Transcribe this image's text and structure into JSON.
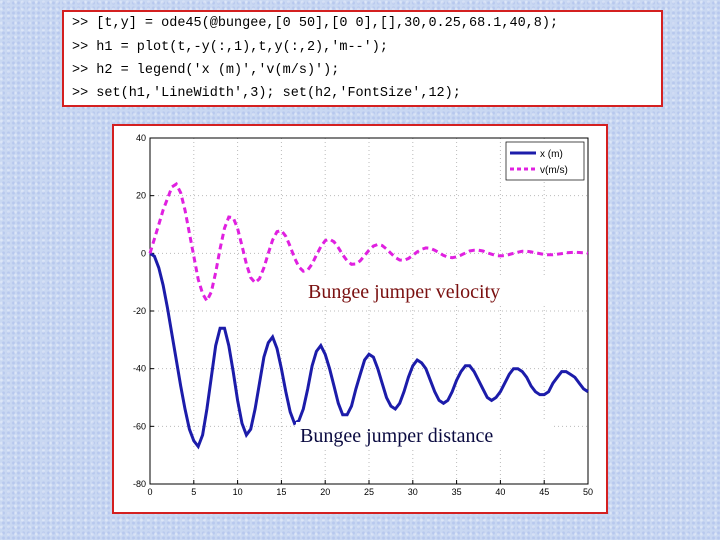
{
  "code": [
    ">> [t,y] = ode45(@bungee,[0 50],[0 0],[],30,0.25,68.1,40,8);",
    ">> h1 = plot(t,-y(:,1),t,y(:,2),'m--');",
    ">> h2 = legend('x (m)','v(m/s)');",
    ">> set(h1,'LineWidth',3); set(h2,'FontSize',12);"
  ],
  "chart_data": {
    "type": "line",
    "annotations": [
      "Bungee jumper velocity",
      "Bungee jumper distance"
    ],
    "x": [
      0,
      0.5,
      1,
      1.5,
      2,
      2.5,
      3,
      3.5,
      4,
      4.5,
      5,
      5.5,
      6,
      6.5,
      7,
      7.5,
      8,
      8.5,
      9,
      9.5,
      10,
      10.5,
      11,
      11.5,
      12,
      12.5,
      13,
      13.5,
      14,
      14.5,
      15,
      15.5,
      16,
      16.5,
      17,
      17.5,
      18,
      18.5,
      19,
      19.5,
      20,
      20.5,
      21,
      21.5,
      22,
      22.5,
      23,
      23.5,
      24,
      24.5,
      25,
      25.5,
      26,
      26.5,
      27,
      27.5,
      28,
      28.5,
      29,
      29.5,
      30,
      30.5,
      31,
      31.5,
      32,
      32.5,
      33,
      33.5,
      34,
      34.5,
      35,
      35.5,
      36,
      36.5,
      37,
      37.5,
      38,
      38.5,
      39,
      39.5,
      40,
      40.5,
      41,
      41.5,
      42,
      42.5,
      43,
      43.5,
      44,
      44.5,
      45,
      45.5,
      46,
      46.5,
      47,
      47.5,
      48,
      48.5,
      49,
      49.5,
      50
    ],
    "series": [
      {
        "name": "x (m)",
        "color": "#1c1caa",
        "dashed": false,
        "values": [
          0,
          -1,
          -5,
          -11,
          -19,
          -28,
          -37,
          -46,
          -54,
          -61,
          -65,
          -67,
          -63,
          -54,
          -43,
          -32,
          -26,
          -26,
          -32,
          -41,
          -51,
          -59,
          -63,
          -61,
          -54,
          -45,
          -36,
          -31,
          -29,
          -33,
          -40,
          -48,
          -55,
          -59,
          -58,
          -54,
          -47,
          -39,
          -34,
          -32,
          -35,
          -40,
          -46,
          -52,
          -56,
          -56,
          -53,
          -47,
          -42,
          -37,
          -35,
          -36,
          -40,
          -45,
          -50,
          -53,
          -54,
          -52,
          -48,
          -43,
          -39,
          -37,
          -38,
          -40,
          -44,
          -48,
          -51,
          -52,
          -51,
          -48,
          -44,
          -41,
          -39,
          -39,
          -41,
          -44,
          -47,
          -50,
          -51,
          -50,
          -48,
          -45,
          -42,
          -40,
          -40,
          -41,
          -43,
          -46,
          -48,
          -49,
          -49,
          -48,
          -45,
          -43,
          -41,
          -41,
          -42,
          -43,
          -45,
          -47,
          -48
        ]
      },
      {
        "name": "v(m/s)",
        "color": "#e020e0",
        "dashed": true,
        "values": [
          0,
          5,
          10,
          15,
          19,
          23,
          24,
          21,
          15,
          7,
          -1,
          -9,
          -14,
          -16.5,
          -13.4,
          -6.6,
          1.6,
          8.7,
          12.6,
          12.4,
          8.6,
          2.6,
          -3.7,
          -8.4,
          -10.2,
          -8.8,
          -5,
          0,
          4.6,
          7.5,
          7.9,
          5.9,
          2.4,
          -1.6,
          -4.7,
          -6.2,
          -5.8,
          -3.7,
          -0.6,
          2.3,
          4.4,
          4.9,
          4,
          2,
          -0.5,
          -2.6,
          -3.8,
          -3.7,
          -2.6,
          -0.8,
          1.1,
          2.5,
          3.1,
          2.7,
          1.5,
          0,
          -1.4,
          -2.3,
          -2.4,
          -1.8,
          -0.7,
          0.5,
          1.4,
          1.9,
          1.7,
          1.1,
          0.2,
          -0.7,
          -1.3,
          -1.5,
          -1.2,
          -0.6,
          0.1,
          0.8,
          1.1,
          1.1,
          0.8,
          0.2,
          -0.3,
          -0.8,
          -0.9,
          -0.8,
          -0.4,
          0,
          0.4,
          0.7,
          0.7,
          0.5,
          0.2,
          -0.1,
          -0.4,
          -0.5,
          -0.5,
          -0.3,
          -0.1,
          0.2,
          0.3,
          0.4,
          0.3,
          0.2,
          0
        ]
      }
    ],
    "xlim": [
      0,
      50
    ],
    "xticks": [
      0,
      5,
      10,
      15,
      20,
      25,
      30,
      35,
      40,
      45,
      50
    ],
    "ylim": [
      -80,
      40
    ],
    "yticks": [
      -80,
      -60,
      -40,
      -20,
      0,
      20,
      40
    ],
    "grid": true,
    "legend": "upper right"
  }
}
